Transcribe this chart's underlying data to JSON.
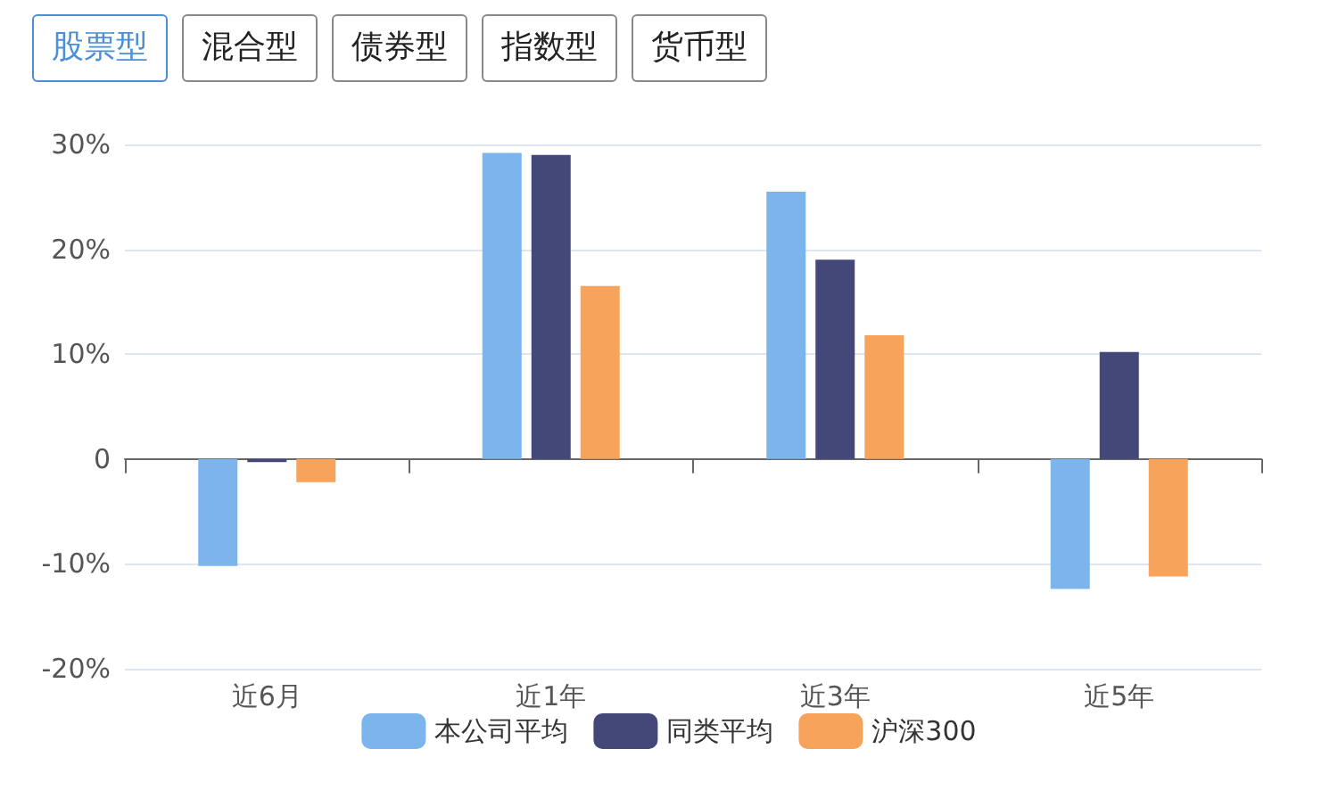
{
  "chart_data": {
    "type": "bar",
    "annotations": [
      "股票型",
      "混合型",
      "债券型",
      "指数型",
      "货币型"
    ],
    "categories": [
      "近6月",
      "近1年",
      "近3年",
      "近5年"
    ],
    "series": [
      {
        "name": "本公司平均",
        "color": "#7cb5ec",
        "values": [
          -10.2,
          29.2,
          25.5,
          -12.4
        ]
      },
      {
        "name": "同类平均",
        "color": "#434878",
        "values": [
          -0.3,
          29.0,
          19.0,
          10.2
        ]
      },
      {
        "name": "沪深300",
        "color": "#f7a35c",
        "values": [
          -2.2,
          16.5,
          11.8,
          -11.2
        ]
      }
    ],
    "ylim": [
      -20,
      30
    ],
    "yticks": [
      {
        "value": -20,
        "label": "-20%"
      },
      {
        "value": -10,
        "label": "-10%"
      },
      {
        "value": 0,
        "label": "0"
      },
      {
        "value": 10,
        "label": "10%"
      },
      {
        "value": 20,
        "label": "20%"
      },
      {
        "value": 30,
        "label": "30%"
      }
    ],
    "grid": "y",
    "legend": "bottom"
  }
}
